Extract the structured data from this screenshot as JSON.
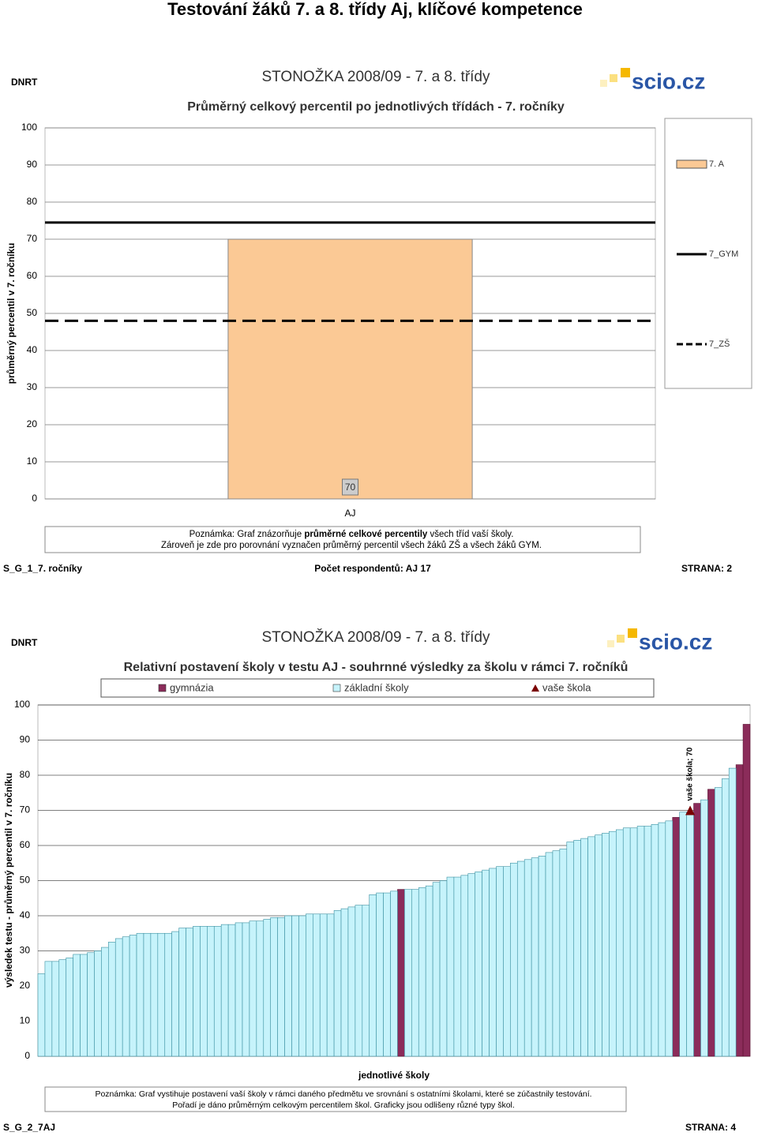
{
  "heading": "Testování žáků 7. a 8. třídy Aj, klíčové kompetence",
  "chart_data": [
    {
      "type": "bar",
      "brand": "DNRT",
      "title": "STONOŽKA 2008/09 - 7. a 8. třídy",
      "logo": "scio.cz",
      "subtitle": "Průměrný celkový percentil po jednotlivých třídách - 7. ročníky",
      "ylabel": "průměrný percentil v 7. ročníku",
      "categories": [
        "AJ"
      ],
      "series": [
        {
          "name": "7. A",
          "color": "#fbc995",
          "values": [
            70
          ],
          "value_labels": [
            "70"
          ]
        }
      ],
      "lines": [
        {
          "name": "7_GYM",
          "value": 74.5,
          "style": "solid",
          "color": "#000000"
        },
        {
          "name": "7_ZŠ",
          "value": 48,
          "style": "dashed",
          "color": "#000000"
        }
      ],
      "ylim": [
        0,
        100
      ],
      "yticks": [
        0,
        10,
        20,
        30,
        40,
        50,
        60,
        70,
        80,
        90,
        100
      ],
      "grid": true,
      "legend": "right",
      "note": [
        "Poznámka: Graf znázorňuje ",
        "průměrné celkové percentily",
        " všech tříd vaší školy.",
        "Zároveň je zde pro porovnání vyznačen průměrný percentil všech žáků ZŠ a všech žáků GYM."
      ],
      "footer_left": "S_G_1_7. ročníky",
      "footer_center": "Počet respondentů: AJ 17",
      "footer_right": "STRANA: 2"
    },
    {
      "type": "bar",
      "brand": "DNRT",
      "title": "STONOŽKA 2008/09 - 7. a 8. třídy",
      "logo": "scio.cz",
      "subtitle": "Relativní postavení školy v testu AJ - souhrnné výsledky za školu v rámci 7. ročníků",
      "ylabel": "výsledek testu - průměrný percentil v 7. ročníku",
      "xlabel": "jednotlivé školy",
      "series": [
        {
          "name": "gymnázia",
          "color": "#8b2c5a",
          "values": [
            null,
            null,
            null,
            null,
            null,
            null,
            null,
            null,
            null,
            null,
            null,
            null,
            null,
            null,
            null,
            null,
            null,
            null,
            null,
            null,
            null,
            null,
            null,
            null,
            null,
            null,
            null,
            null,
            null,
            null,
            null,
            null,
            null,
            null,
            null,
            null,
            null,
            null,
            null,
            null,
            null,
            null,
            null,
            null,
            null,
            null,
            null,
            null,
            null,
            null,
            null,
            47.5,
            null,
            null,
            null,
            null,
            null,
            null,
            null,
            null,
            null,
            null,
            null,
            null,
            null,
            null,
            null,
            null,
            null,
            null,
            null,
            null,
            null,
            null,
            null,
            null,
            null,
            null,
            null,
            null,
            null,
            null,
            null,
            null,
            null,
            null,
            null,
            null,
            null,
            null,
            68,
            null,
            null,
            72,
            null,
            76,
            null,
            null,
            null,
            83,
            94.5
          ]
        },
        {
          "name": "základní školy",
          "color": "#c6f3fb",
          "values": [
            23.5,
            27,
            27,
            27.5,
            28,
            29,
            29,
            29.5,
            30,
            31,
            32.5,
            33.5,
            34,
            34.5,
            35,
            35,
            35,
            35,
            35,
            35.5,
            36.5,
            36.5,
            37,
            37,
            37,
            37,
            37.5,
            37.5,
            38,
            38,
            38.5,
            38.5,
            39,
            39.5,
            39.5,
            40,
            40,
            40,
            40.5,
            40.5,
            40.5,
            40.5,
            41.5,
            42,
            42.5,
            43,
            43,
            46,
            46.5,
            46.5,
            47,
            null,
            47.5,
            47.5,
            48,
            48.5,
            49.5,
            50,
            51,
            51,
            51.5,
            52,
            52.5,
            53,
            53.5,
            54,
            54,
            55,
            55.5,
            56,
            56.5,
            57,
            58,
            58.5,
            59,
            61,
            61.5,
            62,
            62.5,
            63,
            63.5,
            64,
            64.5,
            65,
            65,
            65.5,
            65.5,
            66,
            66.5,
            67,
            null,
            69.5,
            69.5,
            null,
            73,
            null,
            76.5,
            79,
            82,
            null,
            null
          ]
        },
        {
          "name": "vaše škola",
          "color": "#7a0000",
          "marker": "triangle",
          "values": [
            null,
            null,
            null,
            null,
            null,
            null,
            null,
            null,
            null,
            null,
            null,
            null,
            null,
            null,
            null,
            null,
            null,
            null,
            null,
            null,
            null,
            null,
            null,
            null,
            null,
            null,
            null,
            null,
            null,
            null,
            null,
            null,
            null,
            null,
            null,
            null,
            null,
            null,
            null,
            null,
            null,
            null,
            null,
            null,
            null,
            null,
            null,
            null,
            null,
            null,
            null,
            null,
            null,
            null,
            null,
            null,
            null,
            null,
            null,
            null,
            null,
            null,
            null,
            null,
            null,
            null,
            null,
            null,
            null,
            null,
            null,
            null,
            null,
            null,
            null,
            null,
            null,
            null,
            null,
            null,
            null,
            null,
            null,
            null,
            null,
            null,
            null,
            null,
            null,
            null,
            null,
            null,
            70,
            null,
            null,
            null,
            null,
            null,
            null,
            null,
            null
          ],
          "value_labels": [
            null,
            null,
            null,
            null,
            null,
            null,
            null,
            null,
            null,
            null,
            null,
            null,
            null,
            null,
            null,
            null,
            null,
            null,
            null,
            null,
            null,
            null,
            null,
            null,
            null,
            null,
            null,
            null,
            null,
            null,
            null,
            null,
            null,
            null,
            null,
            null,
            null,
            null,
            null,
            null,
            null,
            null,
            null,
            null,
            null,
            null,
            null,
            null,
            null,
            null,
            null,
            null,
            null,
            null,
            null,
            null,
            null,
            null,
            null,
            null,
            null,
            null,
            null,
            null,
            null,
            null,
            null,
            null,
            null,
            null,
            null,
            null,
            null,
            null,
            null,
            null,
            null,
            null,
            null,
            null,
            null,
            null,
            null,
            null,
            null,
            null,
            null,
            null,
            null,
            null,
            null,
            null,
            "vaše škola; 70",
            null,
            null,
            null,
            null,
            null,
            null,
            null,
            null
          ]
        }
      ],
      "ylim": [
        0,
        100
      ],
      "yticks": [
        0,
        10,
        20,
        30,
        40,
        50,
        60,
        70,
        80,
        90,
        100
      ],
      "grid": true,
      "legend": "top",
      "note": [
        "Poznámka: Graf vystihuje postavení vaší školy v rámci daného předmětu ve srovnání s ostatními školami, které se zúčastnily testování.",
        "Pořadí je dáno průměrným celkovým percentilem škol. Graficky jsou odlišeny různé typy škol."
      ],
      "footer_left": "S_G_2_7AJ",
      "footer_right": "STRANA: 4"
    }
  ]
}
